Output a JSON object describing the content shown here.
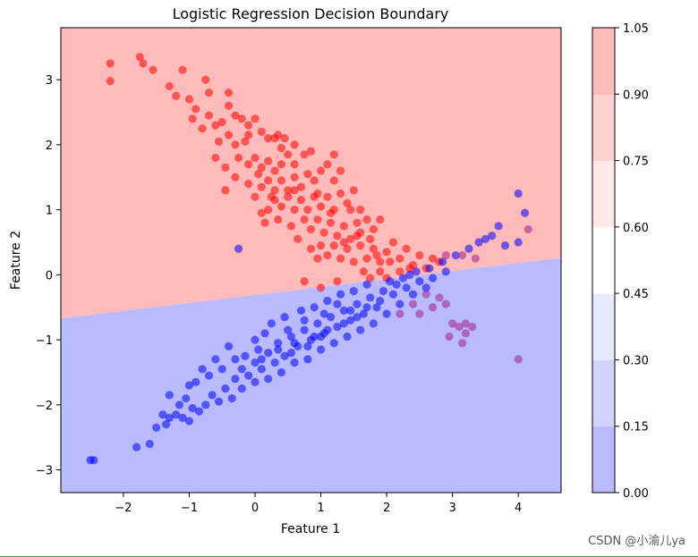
{
  "chart_data": {
    "type": "scatter",
    "title": "Logistic Regression Decision Boundary",
    "xlabel": "Feature 1",
    "ylabel": "Feature 2",
    "xlim": [
      -2.95,
      4.65
    ],
    "ylim": [
      -3.35,
      3.8
    ],
    "xticks": [
      -2,
      -1,
      0,
      1,
      2,
      3,
      4
    ],
    "yticks": [
      -3,
      -2,
      -1,
      0,
      1,
      2,
      3
    ],
    "boundary": [
      [
        -2.95,
        -0.67
      ],
      [
        4.65,
        0.26
      ]
    ],
    "regions": {
      "upper": {
        "color": "#ffbaba"
      },
      "lower": {
        "color": "#babaff"
      }
    },
    "colorbar": {
      "ticks": [
        "0.00",
        "0.15",
        "0.30",
        "0.45",
        "0.60",
        "0.75",
        "0.90",
        "1.05"
      ],
      "colors": [
        "#babaff",
        "#d2d2ff",
        "#e8e8ff",
        "#ffffff",
        "#ffe8e8",
        "#ffd2d2",
        "#ffbaba"
      ]
    },
    "series": [
      {
        "color": "#ff0000",
        "points": [
          [
            -2.2,
            3.25
          ],
          [
            -2.2,
            2.98
          ],
          [
            -1.75,
            3.35
          ],
          [
            -1.7,
            3.25
          ],
          [
            -1.55,
            3.15
          ],
          [
            -1.3,
            2.9
          ],
          [
            -1.2,
            2.75
          ],
          [
            -1.1,
            3.15
          ],
          [
            -0.75,
            3.0
          ],
          [
            -0.7,
            2.8
          ],
          [
            -1.0,
            2.7
          ],
          [
            -0.9,
            2.55
          ],
          [
            -0.95,
            2.4
          ],
          [
            -0.7,
            2.45
          ],
          [
            -0.6,
            2.3
          ],
          [
            -0.8,
            2.25
          ],
          [
            -0.5,
            2.35
          ],
          [
            -0.4,
            2.6
          ],
          [
            -0.3,
            2.45
          ],
          [
            -0.2,
            2.4
          ],
          [
            -0.1,
            2.3
          ],
          [
            -0.4,
            2.15
          ],
          [
            -0.55,
            2.05
          ],
          [
            -0.3,
            2.0
          ],
          [
            -0.15,
            2.05
          ],
          [
            0.0,
            2.4
          ],
          [
            0.1,
            2.2
          ],
          [
            0.2,
            2.1
          ],
          [
            -0.6,
            1.8
          ],
          [
            -0.45,
            1.65
          ],
          [
            -0.25,
            1.8
          ],
          [
            -0.1,
            1.7
          ],
          [
            0.0,
            1.8
          ],
          [
            0.1,
            1.65
          ],
          [
            0.2,
            1.75
          ],
          [
            0.3,
            1.6
          ],
          [
            0.4,
            1.7
          ],
          [
            0.5,
            1.85
          ],
          [
            0.6,
            1.7
          ],
          [
            0.3,
            2.1
          ],
          [
            0.45,
            2.1
          ],
          [
            0.4,
            1.95
          ],
          [
            0.6,
            2.0
          ],
          [
            0.75,
            1.85
          ],
          [
            0.85,
            1.9
          ],
          [
            -0.45,
            1.3
          ],
          [
            -0.3,
            1.5
          ],
          [
            -0.1,
            1.4
          ],
          [
            0.1,
            1.35
          ],
          [
            0.2,
            1.45
          ],
          [
            0.3,
            1.3
          ],
          [
            0.4,
            1.45
          ],
          [
            0.5,
            1.3
          ],
          [
            0.6,
            1.5
          ],
          [
            0.7,
            1.35
          ],
          [
            0.8,
            1.55
          ],
          [
            0.9,
            1.45
          ],
          [
            1.0,
            1.6
          ],
          [
            1.1,
            1.7
          ],
          [
            1.2,
            1.85
          ],
          [
            1.3,
            1.6
          ],
          [
            0.2,
            1.0
          ],
          [
            0.3,
            1.15
          ],
          [
            0.4,
            1.05
          ],
          [
            0.5,
            1.2
          ],
          [
            0.6,
            1.0
          ],
          [
            0.7,
            1.15
          ],
          [
            0.8,
            1.0
          ],
          [
            0.9,
            1.2
          ],
          [
            1.0,
            1.05
          ],
          [
            1.1,
            1.2
          ],
          [
            1.2,
            1.0
          ],
          [
            1.3,
            1.25
          ],
          [
            1.4,
            1.1
          ],
          [
            1.5,
            1.3
          ],
          [
            1.2,
            1.45
          ],
          [
            0.1,
            0.95
          ],
          [
            0.15,
            0.8
          ],
          [
            0.55,
            0.75
          ],
          [
            0.65,
            0.55
          ],
          [
            0.75,
            0.85
          ],
          [
            0.85,
            0.7
          ],
          [
            0.95,
            0.85
          ],
          [
            1.05,
            0.65
          ],
          [
            1.15,
            0.8
          ],
          [
            1.25,
            0.6
          ],
          [
            1.35,
            0.75
          ],
          [
            1.45,
            0.55
          ],
          [
            1.55,
            0.8
          ],
          [
            1.6,
            1.0
          ],
          [
            1.7,
            0.85
          ],
          [
            1.8,
            0.7
          ],
          [
            1.9,
            0.85
          ],
          [
            1.0,
            0.45
          ],
          [
            1.1,
            0.3
          ],
          [
            1.2,
            0.45
          ],
          [
            1.3,
            0.25
          ],
          [
            1.4,
            0.4
          ],
          [
            1.5,
            0.2
          ],
          [
            1.6,
            0.45
          ],
          [
            1.7,
            0.25
          ],
          [
            1.8,
            0.4
          ],
          [
            1.9,
            0.2
          ],
          [
            2.0,
            0.35
          ],
          [
            2.1,
            0.5
          ],
          [
            2.2,
            0.25
          ],
          [
            2.3,
            0.4
          ],
          [
            2.4,
            0.15
          ],
          [
            1.65,
            0.05
          ],
          [
            1.75,
            -0.05
          ],
          [
            1.9,
            0.05
          ],
          [
            2.0,
            -0.05
          ],
          [
            2.2,
            0.05
          ],
          [
            2.5,
            0.3
          ],
          [
            2.6,
            0.1
          ],
          [
            2.7,
            0.25
          ],
          [
            2.8,
            0.2
          ],
          [
            0.95,
            0.25
          ],
          [
            0.75,
            -0.1
          ],
          [
            1.0,
            -0.2
          ],
          [
            1.25,
            -0.1
          ],
          [
            -0.4,
            2.8
          ],
          [
            0.35,
            2.15
          ],
          [
            -0.1,
            2.15
          ],
          [
            0.05,
            1.55
          ],
          [
            0.25,
            1.2
          ],
          [
            0.6,
            1.3
          ],
          [
            0.95,
            1.25
          ],
          [
            1.15,
            0.95
          ],
          [
            1.35,
            0.5
          ],
          [
            1.55,
            0.6
          ],
          [
            1.75,
            0.55
          ],
          [
            1.85,
            0.3
          ],
          [
            2.05,
            0.2
          ],
          [
            2.35,
            0.1
          ],
          [
            0.85,
            0.4
          ],
          [
            1.45,
            1.0
          ],
          [
            1.6,
            0.65
          ],
          [
            0.0,
            1.2
          ],
          [
            0.35,
            0.85
          ]
        ]
      },
      {
        "color": "#0000ff",
        "points": [
          [
            -2.5,
            -2.85
          ],
          [
            -2.45,
            -2.85
          ],
          [
            -1.8,
            -2.65
          ],
          [
            -1.6,
            -2.6
          ],
          [
            -1.5,
            -2.35
          ],
          [
            -1.4,
            -2.15
          ],
          [
            -1.35,
            -2.3
          ],
          [
            -1.3,
            -2.2
          ],
          [
            -1.1,
            -2.2
          ],
          [
            -1.0,
            -2.25
          ],
          [
            -0.95,
            -2.05
          ],
          [
            -0.85,
            -2.1
          ],
          [
            -1.15,
            -2.0
          ],
          [
            -1.2,
            -2.15
          ],
          [
            -0.75,
            -2.0
          ],
          [
            -0.65,
            -1.85
          ],
          [
            -0.55,
            -1.95
          ],
          [
            -0.45,
            -1.75
          ],
          [
            -0.35,
            -1.9
          ],
          [
            -0.3,
            -1.6
          ],
          [
            -0.2,
            -1.75
          ],
          [
            -0.1,
            -1.55
          ],
          [
            0.0,
            -1.65
          ],
          [
            0.1,
            -1.45
          ],
          [
            0.2,
            -1.6
          ],
          [
            0.3,
            -1.35
          ],
          [
            -0.9,
            -1.65
          ],
          [
            -0.7,
            -1.55
          ],
          [
            -0.5,
            -1.45
          ],
          [
            -0.3,
            -1.3
          ],
          [
            -0.15,
            -1.25
          ],
          [
            0.05,
            -1.15
          ],
          [
            0.2,
            -1.2
          ],
          [
            0.35,
            -1.05
          ],
          [
            0.45,
            -1.25
          ],
          [
            0.55,
            -0.95
          ],
          [
            0.65,
            -1.1
          ],
          [
            0.75,
            -0.85
          ],
          [
            0.85,
            -1.0
          ],
          [
            0.95,
            -0.75
          ],
          [
            1.05,
            -0.9
          ],
          [
            1.15,
            -0.65
          ],
          [
            1.25,
            -0.8
          ],
          [
            1.35,
            -0.55
          ],
          [
            1.45,
            -0.7
          ],
          [
            1.55,
            -0.45
          ],
          [
            1.65,
            -0.6
          ],
          [
            1.75,
            -0.35
          ],
          [
            1.85,
            -0.5
          ],
          [
            1.95,
            -0.25
          ],
          [
            0.4,
            -1.5
          ],
          [
            0.6,
            -1.35
          ],
          [
            0.8,
            -1.3
          ],
          [
            1.0,
            -1.15
          ],
          [
            1.2,
            -1.05
          ],
          [
            1.4,
            -0.95
          ],
          [
            1.6,
            -0.85
          ],
          [
            1.8,
            -0.75
          ],
          [
            2.0,
            -0.6
          ],
          [
            2.2,
            -0.45
          ],
          [
            2.4,
            -0.3
          ],
          [
            2.6,
            -0.2
          ],
          [
            0.25,
            -0.75
          ],
          [
            0.45,
            -0.65
          ],
          [
            0.7,
            -0.55
          ],
          [
            0.9,
            -0.5
          ],
          [
            1.1,
            -0.4
          ],
          [
            1.3,
            -0.3
          ],
          [
            1.5,
            -0.25
          ],
          [
            1.7,
            -0.15
          ],
          [
            2.05,
            -0.1
          ],
          [
            2.25,
            -0.05
          ],
          [
            2.45,
            0.05
          ],
          [
            2.65,
            0.1
          ],
          [
            2.85,
            0.2
          ],
          [
            3.05,
            0.3
          ],
          [
            3.25,
            0.4
          ],
          [
            3.4,
            0.5
          ],
          [
            3.6,
            0.6
          ],
          [
            3.8,
            0.45
          ],
          [
            -0.4,
            -1.1
          ],
          [
            -0.6,
            -1.3
          ],
          [
            -0.8,
            -1.45
          ],
          [
            -1.0,
            -1.7
          ],
          [
            0.0,
            -1.0
          ],
          [
            0.15,
            -0.9
          ],
          [
            0.5,
            -0.85
          ],
          [
            0.75,
            -0.7
          ],
          [
            1.05,
            -0.6
          ],
          [
            1.25,
            -0.45
          ],
          [
            -1.3,
            -1.85
          ],
          [
            -1.05,
            -1.9
          ],
          [
            0.1,
            -1.3
          ],
          [
            0.35,
            -1.15
          ],
          [
            0.6,
            -1.05
          ],
          [
            0.9,
            -0.95
          ],
          [
            1.1,
            -0.85
          ],
          [
            1.35,
            -0.75
          ],
          [
            1.55,
            -0.65
          ],
          [
            1.7,
            -0.5
          ],
          [
            2.1,
            -0.3
          ],
          [
            2.3,
            -0.2
          ],
          [
            2.5,
            -0.1
          ],
          [
            2.7,
            -0.05
          ],
          [
            2.9,
            0.05
          ],
          [
            4.0,
            1.25
          ],
          [
            4.1,
            0.95
          ],
          [
            4.0,
            0.5
          ],
          [
            3.7,
            0.75
          ],
          [
            3.5,
            0.55
          ],
          [
            -0.2,
            -1.45
          ],
          [
            0.0,
            -1.35
          ],
          [
            0.55,
            -1.2
          ],
          [
            0.8,
            -1.1
          ],
          [
            1.0,
            -0.95
          ],
          [
            1.45,
            -0.55
          ],
          [
            1.9,
            -0.4
          ],
          [
            2.15,
            -0.15
          ],
          [
            2.35,
            0.0
          ],
          [
            -0.25,
            0.4
          ]
        ]
      },
      {
        "color": "#a0208a",
        "points": [
          [
            2.8,
            -0.35
          ],
          [
            2.9,
            -0.45
          ],
          [
            2.7,
            -0.5
          ],
          [
            2.5,
            -0.6
          ],
          [
            3.0,
            -0.75
          ],
          [
            3.1,
            -0.8
          ],
          [
            3.2,
            -0.75
          ],
          [
            3.3,
            -0.8
          ],
          [
            3.15,
            -1.05
          ],
          [
            2.95,
            -0.95
          ],
          [
            3.2,
            -0.9
          ],
          [
            2.6,
            -0.3
          ],
          [
            2.4,
            -0.45
          ],
          [
            2.2,
            -0.6
          ],
          [
            4.0,
            -1.3
          ],
          [
            4.15,
            0.7
          ],
          [
            2.9,
            0.3
          ],
          [
            3.15,
            0.3
          ],
          [
            3.35,
            0.25
          ]
        ]
      }
    ]
  },
  "watermark": "CSDN @小渝儿ya"
}
